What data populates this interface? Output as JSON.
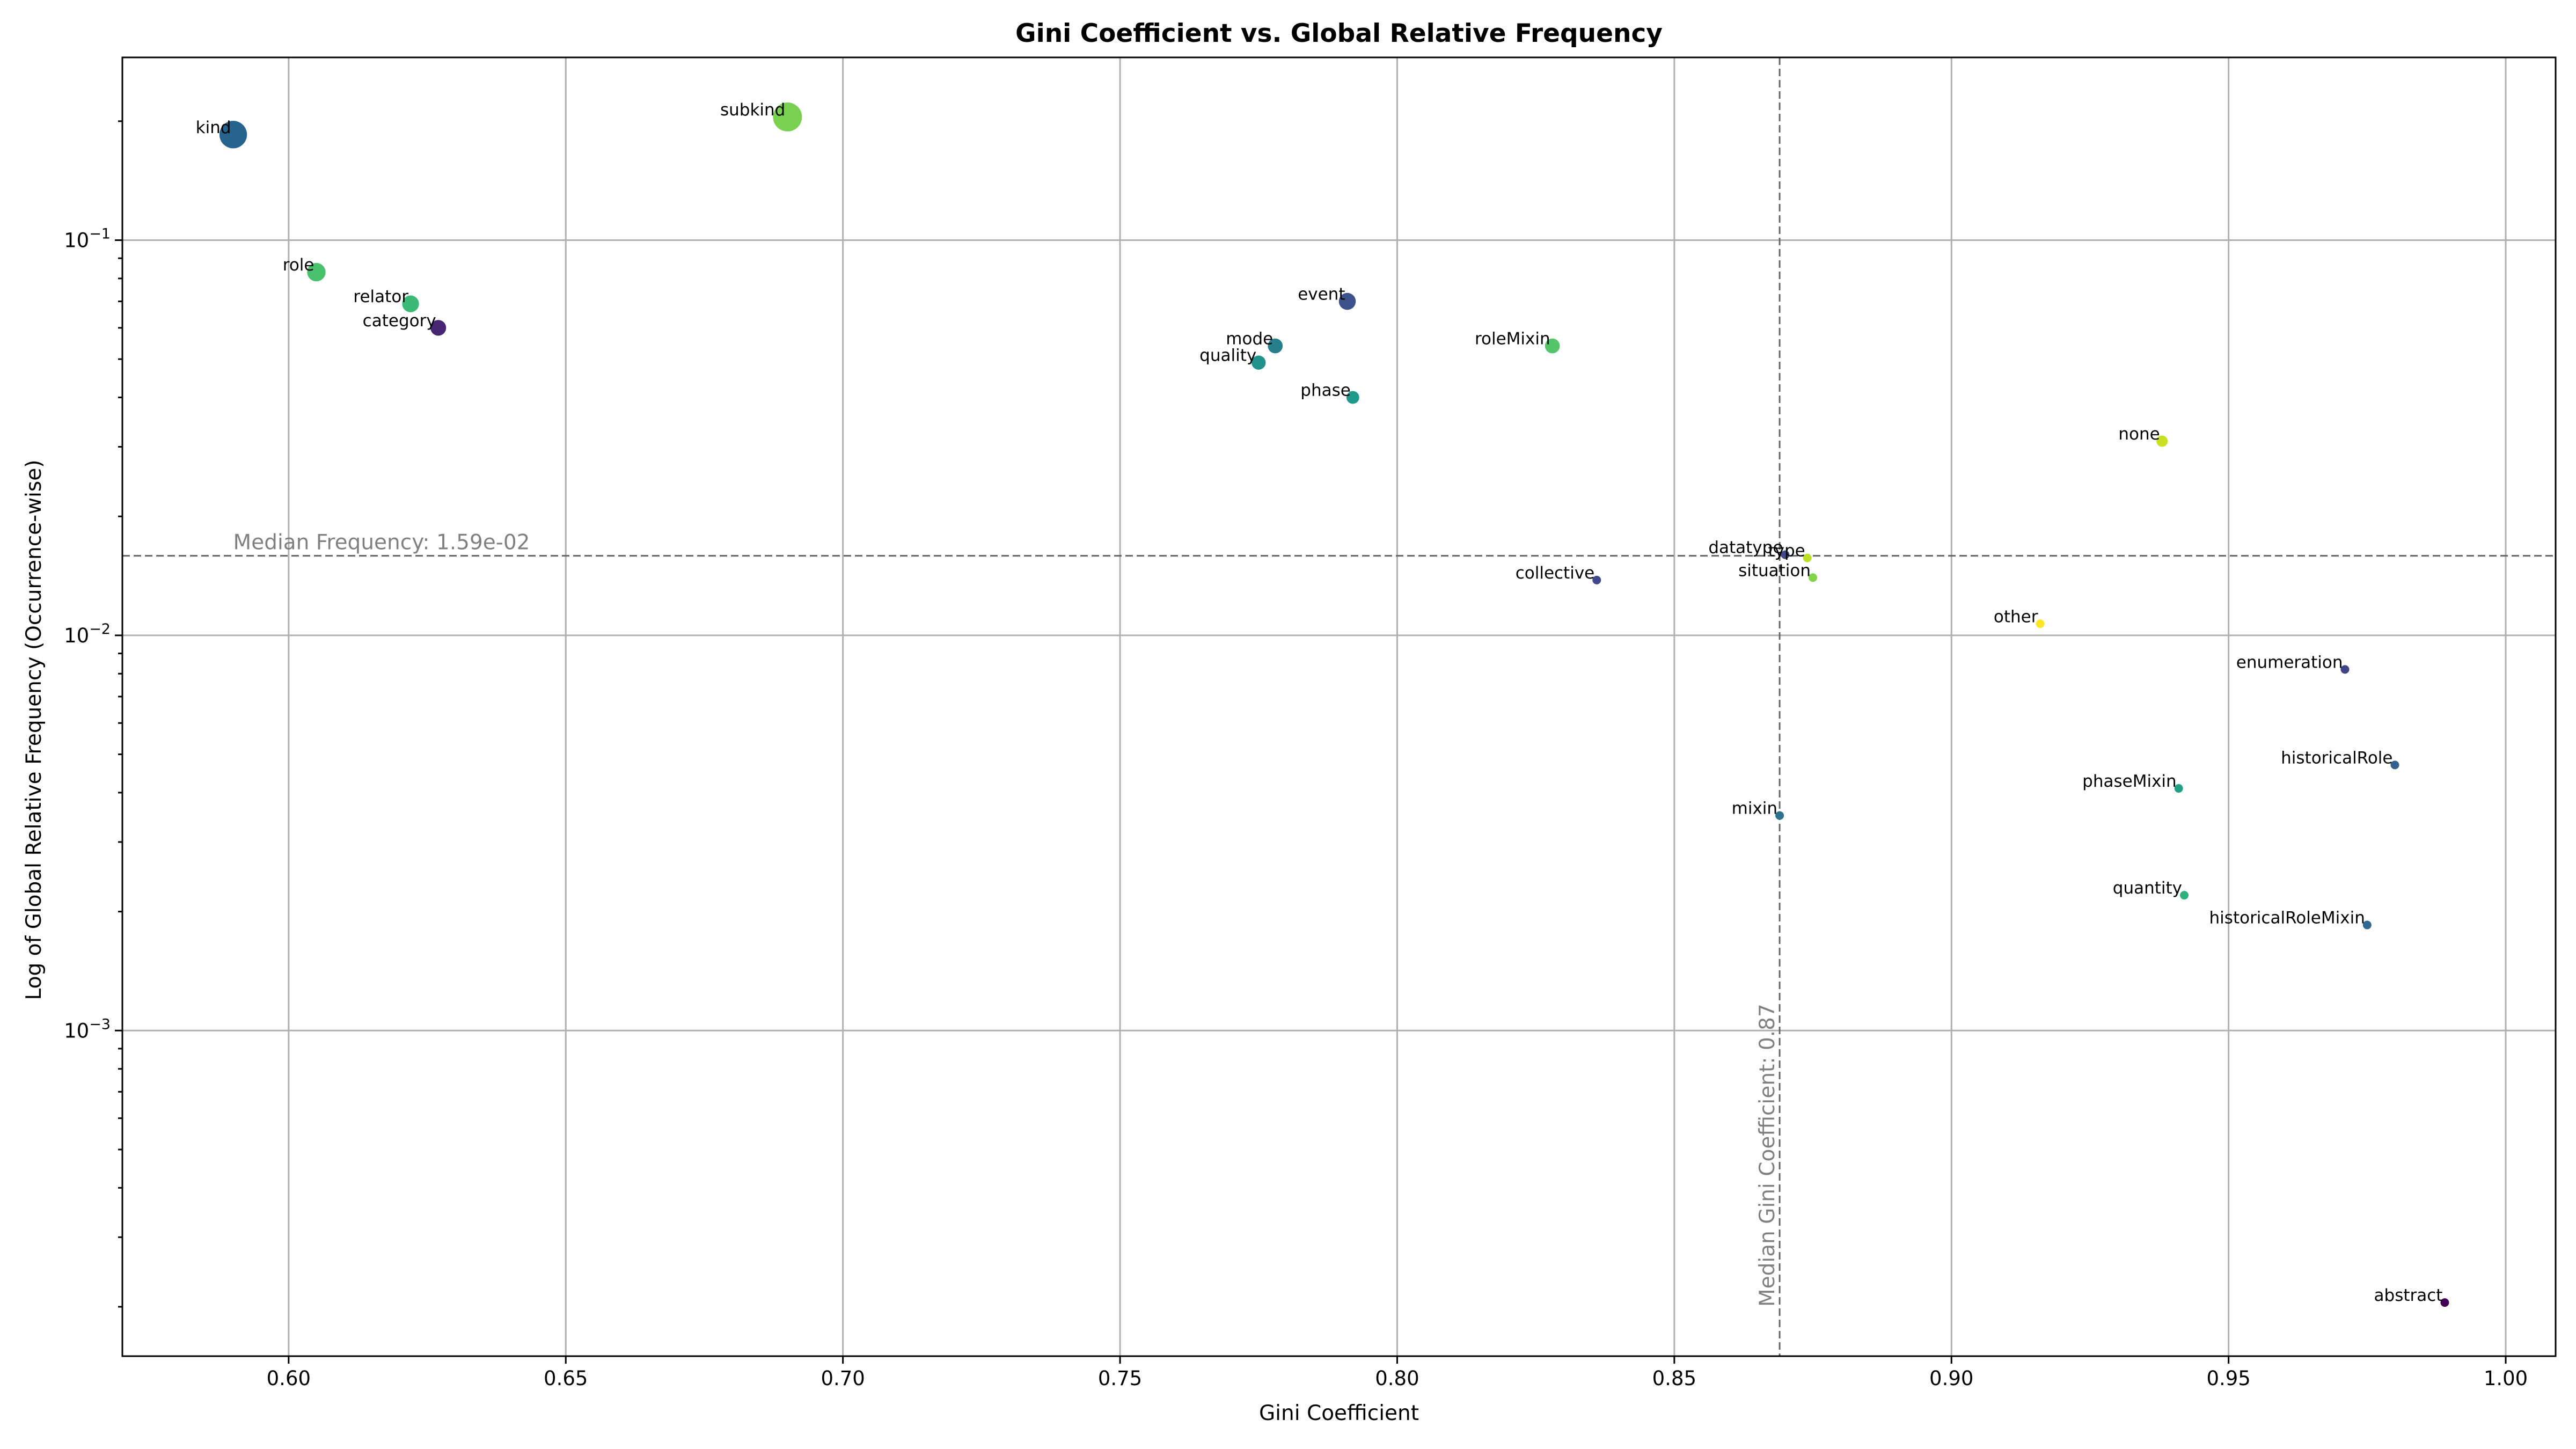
{
  "chart_data": {
    "type": "scatter",
    "title": "Gini Coefficient vs. Global Relative Frequency",
    "xlabel": "Gini Coefficient",
    "ylabel": "Log of Global Relative Frequency (Occurrence-wise)",
    "xlim": [
      0.57,
      1.009
    ],
    "ylim": [
      0.00015,
      0.29
    ],
    "yscale": "log",
    "grid": true,
    "x_ticks": [
      {
        "value": 0.6,
        "label": "0.60"
      },
      {
        "value": 0.65,
        "label": "0.65"
      },
      {
        "value": 0.7,
        "label": "0.70"
      },
      {
        "value": 0.75,
        "label": "0.75"
      },
      {
        "value": 0.8,
        "label": "0.80"
      },
      {
        "value": 0.85,
        "label": "0.85"
      },
      {
        "value": 0.9,
        "label": "0.90"
      },
      {
        "value": 0.95,
        "label": "0.95"
      },
      {
        "value": 1.0,
        "label": "1.00"
      }
    ],
    "y_ticks": [
      {
        "value": 0.1,
        "base": "10",
        "exp": "−1"
      },
      {
        "value": 0.01,
        "base": "10",
        "exp": "−2"
      },
      {
        "value": 0.001,
        "base": "10",
        "exp": "−3"
      }
    ],
    "reference_lines": {
      "median_frequency": {
        "value": 0.0159,
        "label": "Median Frequency: 1.59e-02",
        "color": "#808080"
      },
      "median_gini": {
        "value": 0.869,
        "label": "Median Gini Coefficient: 0.87",
        "color": "#808080"
      }
    },
    "points": [
      {
        "label": "kind",
        "x": 0.59,
        "y": 0.185,
        "color": "#26648e",
        "label_color": "#000000"
      },
      {
        "label": "subkind",
        "x": 0.69,
        "y": 0.205,
        "color": "#7ad151",
        "label_color": "#000000"
      },
      {
        "label": "role",
        "x": 0.605,
        "y": 0.083,
        "color": "#4ac16d",
        "label_color": "#000000"
      },
      {
        "label": "relator",
        "x": 0.622,
        "y": 0.069,
        "color": "#3aba76",
        "label_color": "#000000"
      },
      {
        "label": "category",
        "x": 0.627,
        "y": 0.06,
        "color": "#482475",
        "label_color": "#000000"
      },
      {
        "label": "event",
        "x": 0.791,
        "y": 0.07,
        "color": "#3b528b",
        "label_color": "#000000"
      },
      {
        "label": "mode",
        "x": 0.778,
        "y": 0.054,
        "color": "#277f8e",
        "label_color": "#000000"
      },
      {
        "label": "quality",
        "x": 0.775,
        "y": 0.049,
        "color": "#21918c",
        "label_color": "#000000"
      },
      {
        "label": "phase",
        "x": 0.792,
        "y": 0.04,
        "color": "#1f9a8a",
        "label_color": "#000000"
      },
      {
        "label": "roleMixin",
        "x": 0.828,
        "y": 0.054,
        "color": "#54c568",
        "label_color": "#000000"
      },
      {
        "label": "none",
        "x": 0.938,
        "y": 0.031,
        "color": "#c8e020",
        "label_color": "#0000cc"
      },
      {
        "label": "datatype",
        "x": 0.87,
        "y": 0.016,
        "color": "#3e4a89",
        "label_color": "#000000"
      },
      {
        "label": "type",
        "x": 0.874,
        "y": 0.0157,
        "color": "#bddf26",
        "label_color": "#000000"
      },
      {
        "label": "situation",
        "x": 0.875,
        "y": 0.014,
        "color": "#84d44b",
        "label_color": "#000000"
      },
      {
        "label": "collective",
        "x": 0.836,
        "y": 0.0138,
        "color": "#3e4989",
        "label_color": "#000000"
      },
      {
        "label": "other",
        "x": 0.916,
        "y": 0.0107,
        "color": "#fde725",
        "label_color": "#ff0000"
      },
      {
        "label": "enumeration",
        "x": 0.971,
        "y": 0.0082,
        "color": "#414487",
        "label_color": "#000000"
      },
      {
        "label": "historicalRole",
        "x": 0.98,
        "y": 0.0047,
        "color": "#355f8d",
        "label_color": "#000000"
      },
      {
        "label": "phaseMixin",
        "x": 0.941,
        "y": 0.0041,
        "color": "#1fa187",
        "label_color": "#000000"
      },
      {
        "label": "mixin",
        "x": 0.869,
        "y": 0.0035,
        "color": "#2c728e",
        "label_color": "#000000"
      },
      {
        "label": "quantity",
        "x": 0.942,
        "y": 0.0022,
        "color": "#2db27d",
        "label_color": "#000000"
      },
      {
        "label": "historicalRoleMixin",
        "x": 0.975,
        "y": 0.00185,
        "color": "#31688e",
        "label_color": "#000000"
      },
      {
        "label": "abstract",
        "x": 0.989,
        "y": 0.000205,
        "color": "#440154",
        "label_color": "#000000"
      }
    ]
  }
}
